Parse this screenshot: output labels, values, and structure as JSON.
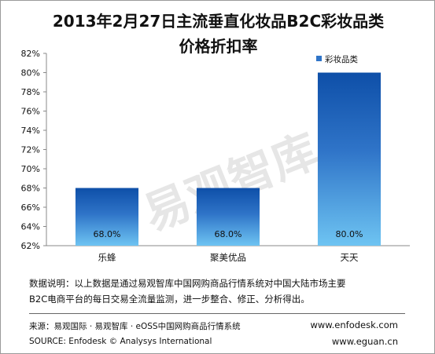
{
  "title": {
    "line1": "2013年2月27日主流垂直化妆品B2C彩妆品类",
    "line2": "价格折扣率"
  },
  "watermark": "易观智库",
  "note": {
    "line1": "数据说明：以上数据是通过易观智库中国网购商品行情系统对中国大陆市场主要",
    "line2": "B2C电商平台的每日交易全流量监测，进一步整合、修正、分析得出。"
  },
  "source": {
    "cn": "来源：易观国际 · 易观智库 · eOSS中国网购商品行情系统",
    "en": "SOURCE: Enfodesk © Analysys International"
  },
  "urls": {
    "enfodesk": "www.enfodesk.com",
    "eguan": "www.eguan.cn"
  },
  "chart_data": {
    "type": "bar",
    "title": "2013年2月27日主流垂直化妆品B2C彩妆品类价格折扣率",
    "categories": [
      "乐蜂",
      "聚美优品",
      "天天"
    ],
    "series": [
      {
        "name": "彩妆品类",
        "values": [
          68.0,
          68.0,
          80.0
        ]
      }
    ],
    "data_labels": [
      "68.0%",
      "68.0%",
      "80.0%"
    ],
    "yticks": [
      "62%",
      "64%",
      "66%",
      "68%",
      "70%",
      "72%",
      "74%",
      "76%",
      "78%",
      "80%",
      "82%"
    ],
    "ylim": [
      62,
      82
    ],
    "ystep": 2,
    "legend": "top-right",
    "grid": false,
    "bar_color": "#2f74c8"
  }
}
